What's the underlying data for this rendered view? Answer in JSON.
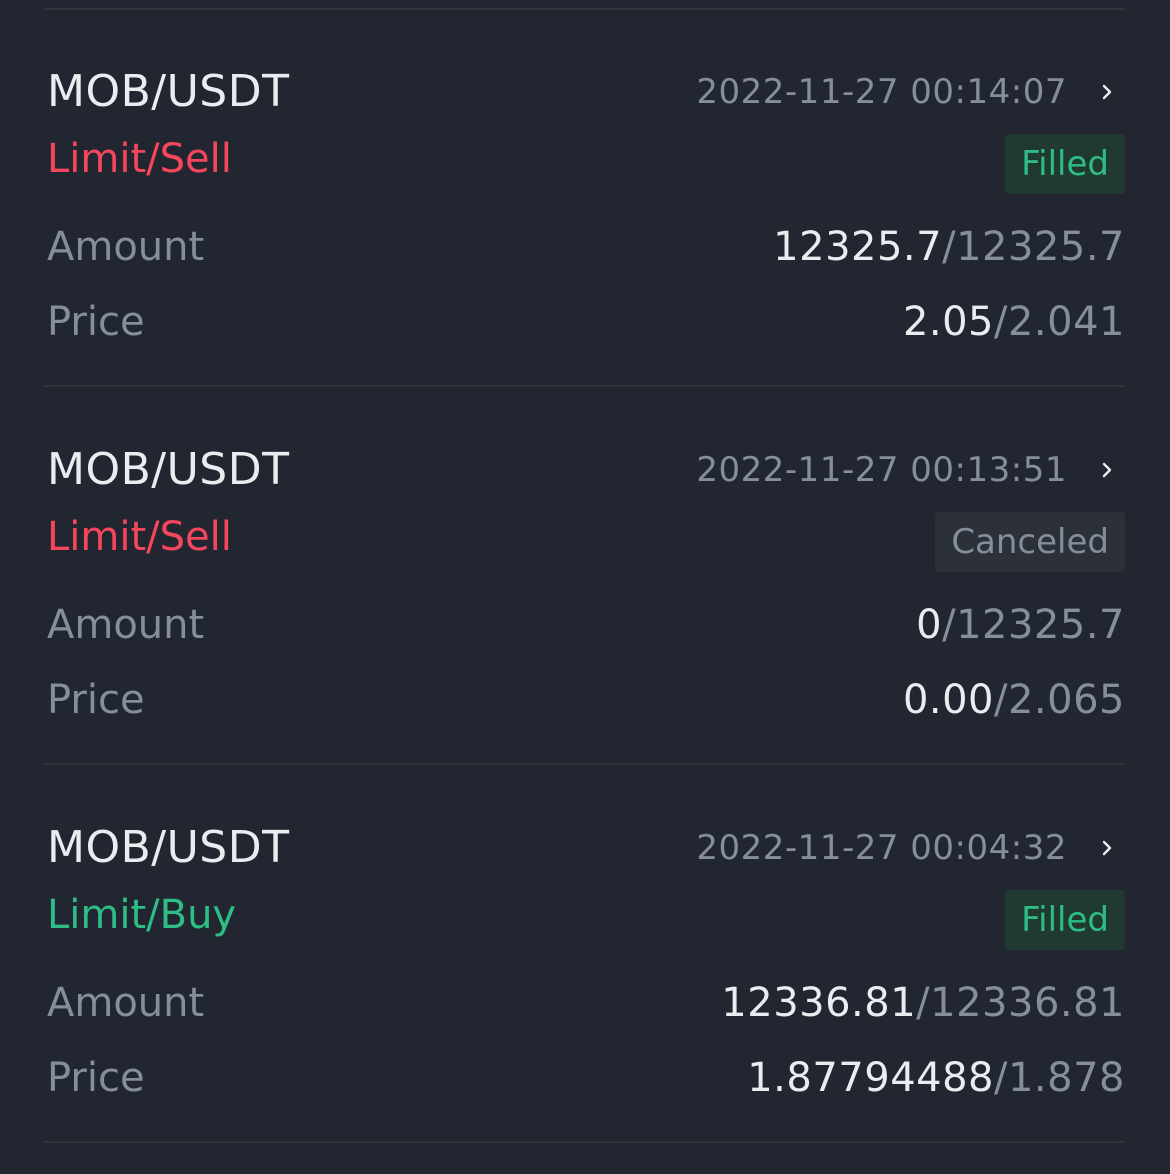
{
  "colors": {
    "background": "#222630",
    "sell": "#f6465d",
    "buy": "#2ebd85",
    "muted": "#848e9c",
    "text": "#eaecef"
  },
  "labels": {
    "amount": "Amount",
    "price": "Price"
  },
  "orders": [
    {
      "pair": "MOB/USDT",
      "time": "2022-11-27 00:14:07",
      "side": "Limit/Sell",
      "side_type": "sell",
      "status": "Filled",
      "amount_filled": "12325.7",
      "amount_total": "12325.7",
      "price_avg": "2.05",
      "price_order": "2.041"
    },
    {
      "pair": "MOB/USDT",
      "time": "2022-11-27 00:13:51",
      "side": "Limit/Sell",
      "side_type": "sell",
      "status": "Canceled",
      "amount_filled": "0",
      "amount_total": "12325.7",
      "price_avg": "0.00",
      "price_order": "2.065"
    },
    {
      "pair": "MOB/USDT",
      "time": "2022-11-27 00:04:32",
      "side": "Limit/Buy",
      "side_type": "buy",
      "status": "Filled",
      "amount_filled": "12336.81",
      "amount_total": "12336.81",
      "price_avg": "1.87794488",
      "price_order": "1.878"
    }
  ]
}
